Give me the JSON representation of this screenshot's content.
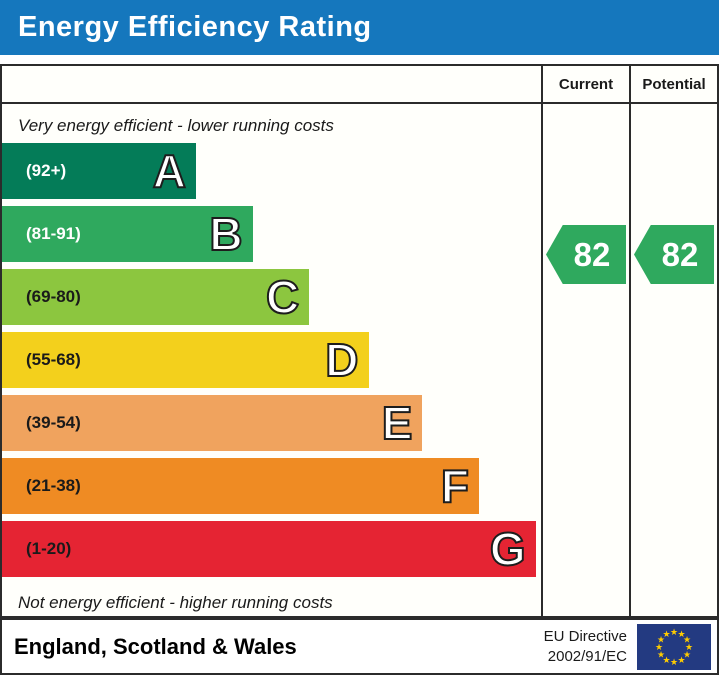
{
  "title_bar": {
    "label": "Energy Efficiency Rating",
    "background": "#1577bd",
    "text_color": "#ffffff"
  },
  "table": {
    "header": {
      "current": "Current",
      "potential": "Potential"
    },
    "top_note": "Very energy efficient - lower running costs",
    "bottom_note": "Not energy efficient - higher running costs",
    "bands": [
      {
        "letter": "A",
        "range": "(92+)",
        "color": "#047c58",
        "width_pct": 36,
        "label_color": "#ffffff"
      },
      {
        "letter": "B",
        "range": "(81-91)",
        "color": "#2fa95e",
        "width_pct": 46.5,
        "label_color": "#ffffff"
      },
      {
        "letter": "C",
        "range": "(69-80)",
        "color": "#8cc63f",
        "width_pct": 57,
        "label_color": "#1a1a1a"
      },
      {
        "letter": "D",
        "range": "(55-68)",
        "color": "#f3d01c",
        "width_pct": 68,
        "label_color": "#1a1a1a"
      },
      {
        "letter": "E",
        "range": "(39-54)",
        "color": "#f0a35e",
        "width_pct": 78,
        "label_color": "#1a1a1a"
      },
      {
        "letter": "F",
        "range": "(21-38)",
        "color": "#ef8b23",
        "width_pct": 88.5,
        "label_color": "#1a1a1a"
      },
      {
        "letter": "G",
        "range": "(1-20)",
        "color": "#e52433",
        "width_pct": 99,
        "label_color": "#1a1a1a"
      }
    ],
    "ratings": {
      "current": {
        "value": "82",
        "color": "#2fa95e"
      },
      "potential": {
        "value": "82",
        "color": "#2fa95e"
      }
    }
  },
  "footer": {
    "region_label": "England, Scotland & Wales",
    "directive": {
      "line1": "EU Directive",
      "line2": "2002/91/EC"
    },
    "eu_flag": {
      "background": "#233a81",
      "star_color": "#ffcc00"
    }
  },
  "chart_data": {
    "type": "bar",
    "title": "Energy Efficiency Rating",
    "categories": [
      "A",
      "B",
      "C",
      "D",
      "E",
      "F",
      "G"
    ],
    "band_ranges": [
      "92+",
      "81-91",
      "69-80",
      "55-68",
      "39-54",
      "21-38",
      "1-20"
    ],
    "band_colors": [
      "#047c58",
      "#2fa95e",
      "#8cc63f",
      "#f3d01c",
      "#f0a35e",
      "#ef8b23",
      "#e52433"
    ],
    "band_widths_pct": [
      36,
      46.5,
      57,
      68,
      78,
      88.5,
      99
    ],
    "series": [
      {
        "name": "Current",
        "values": [
          82
        ],
        "band": "B"
      },
      {
        "name": "Potential",
        "values": [
          82
        ],
        "band": "B"
      }
    ],
    "notes": [
      "Very energy efficient - lower running costs",
      "Not energy efficient - higher running costs"
    ],
    "region": "England, Scotland & Wales",
    "directive": "EU Directive 2002/91/EC"
  }
}
